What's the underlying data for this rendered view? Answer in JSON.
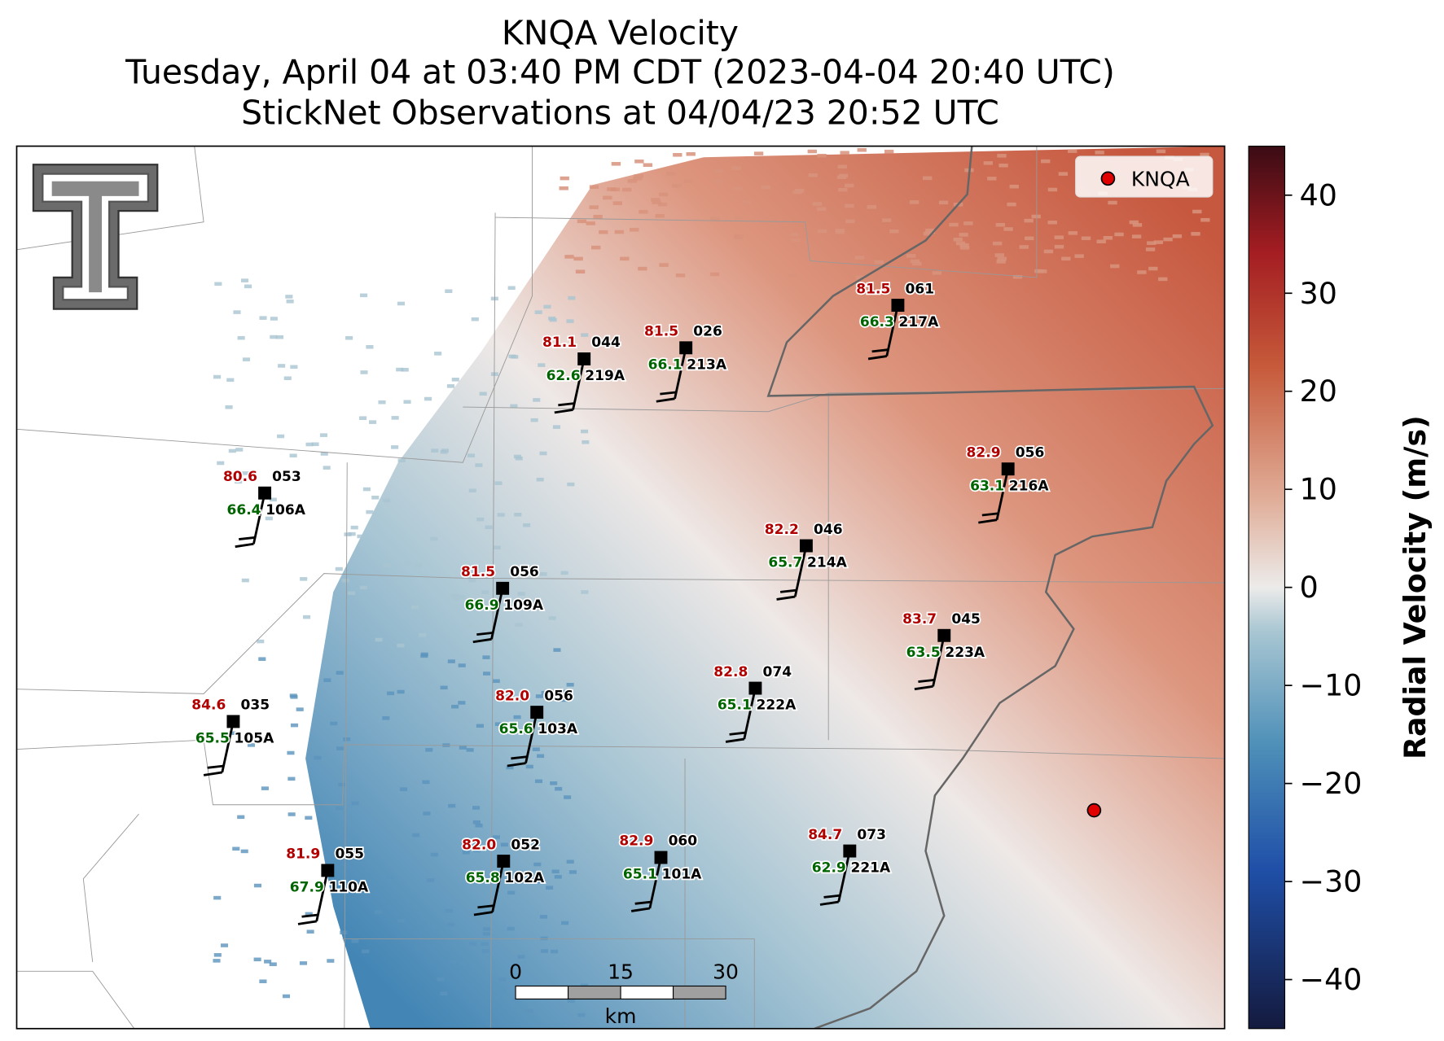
{
  "title": [
    "KNQA Velocity",
    "Tuesday, April 04 at 03:40 PM CDT (2023-04-04 20:40 UTC)",
    "StickNet Observations at 04/04/23 20:52 UTC"
  ],
  "radar": {
    "name": "KNQA"
  },
  "colorbar": {
    "label": "Radial Velocity (m/s)",
    "clim": [
      -45,
      45
    ],
    "ticks": [
      40,
      30,
      20,
      10,
      0,
      {
        "value": -10,
        "label": "−10"
      },
      {
        "value": -20,
        "label": "−20"
      },
      {
        "value": -30,
        "label": "−30"
      },
      {
        "value": -40,
        "label": "−40"
      }
    ]
  },
  "scale_bar": {
    "ticks": [
      0,
      15,
      30
    ],
    "unit": "km"
  },
  "stations": [
    {
      "temperature": "81.1",
      "dewpoint": "62.6",
      "wind": "044",
      "id": "219A"
    },
    {
      "temperature": "81.5",
      "dewpoint": "66.1",
      "wind": "026",
      "id": "213A"
    },
    {
      "temperature": "81.5",
      "dewpoint": "66.3",
      "wind": "061",
      "id": "217A"
    },
    {
      "temperature": "80.6",
      "dewpoint": "66.4",
      "wind": "053",
      "id": "106A"
    },
    {
      "temperature": "82.9",
      "dewpoint": "63.1",
      "wind": "056",
      "id": "216A"
    },
    {
      "temperature": "82.2",
      "dewpoint": "65.7",
      "wind": "046",
      "id": "214A"
    },
    {
      "temperature": "81.5",
      "dewpoint": "66.9",
      "wind": "056",
      "id": "109A"
    },
    {
      "temperature": "83.7",
      "dewpoint": "63.5",
      "wind": "045",
      "id": "223A"
    },
    {
      "temperature": "82.8",
      "dewpoint": "65.1",
      "wind": "074",
      "id": "222A"
    },
    {
      "temperature": "84.6",
      "dewpoint": "65.5",
      "wind": "035",
      "id": "105A"
    },
    {
      "temperature": "82.0",
      "dewpoint": "65.6",
      "wind": "056",
      "id": "103A"
    },
    {
      "temperature": "81.9",
      "dewpoint": "67.9",
      "wind": "055",
      "id": "110A"
    },
    {
      "temperature": "82.0",
      "dewpoint": "65.8",
      "wind": "052",
      "id": "102A"
    },
    {
      "temperature": "82.9",
      "dewpoint": "65.1",
      "wind": "060",
      "id": "101A"
    },
    {
      "temperature": "84.7",
      "dewpoint": "62.9",
      "wind": "073",
      "id": "221A"
    }
  ]
}
